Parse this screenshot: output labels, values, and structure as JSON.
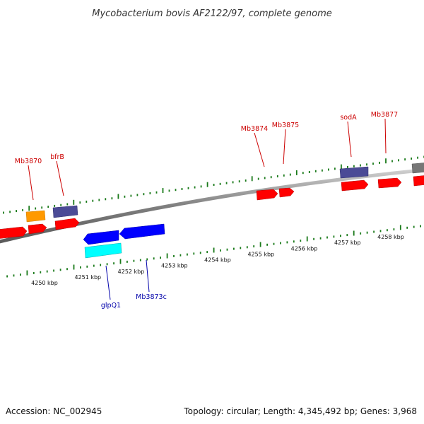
{
  "title": "Mycobacterium bovis AF2122/97, complete genome",
  "footer": {
    "accession": "Accession: NC_002945",
    "summary": "Topology: circular; Length: 4,345,492 bp; Genes: 3,968"
  },
  "colors": {
    "forward_label": "#cc0000",
    "reverse_label": "#0000aa",
    "tick": "#1a7a1a",
    "backbone": "#7f7f7f",
    "red_gene": "#ff0000",
    "blue_gene": "#0000ff",
    "cyan_gene": "#00ffff",
    "slate_gene": "#4b4b96",
    "orange_gene": "#ff9900",
    "gray_gene": "#777777"
  },
  "chart_data": {
    "type": "genome-map",
    "scale_unit": "kbp",
    "kbp_ticks": [
      {
        "kbp": 4250,
        "label": "4250 kbp"
      },
      {
        "kbp": 4251,
        "label": "4251 kbp"
      },
      {
        "kbp": 4252,
        "label": "4252 kbp"
      },
      {
        "kbp": 4253,
        "label": "4253 kbp"
      },
      {
        "kbp": 4254,
        "label": "4254 kbp"
      },
      {
        "kbp": 4255,
        "label": "4255 kbp"
      },
      {
        "kbp": 4256,
        "label": "4256 kbp"
      },
      {
        "kbp": 4257,
        "label": "4257 kbp"
      },
      {
        "kbp": 4258,
        "label": "4258 kbp"
      }
    ],
    "gene_labels": [
      {
        "name": "Mb3870",
        "strand": "+"
      },
      {
        "name": "bfrB",
        "strand": "+"
      },
      {
        "name": "Mb3874",
        "strand": "+"
      },
      {
        "name": "Mb3875",
        "strand": "+"
      },
      {
        "name": "sodA",
        "strand": "+"
      },
      {
        "name": "Mb3877",
        "strand": "+"
      },
      {
        "name": "glpQ1",
        "strand": "-"
      },
      {
        "name": "Mb3873c",
        "strand": "-"
      }
    ]
  }
}
